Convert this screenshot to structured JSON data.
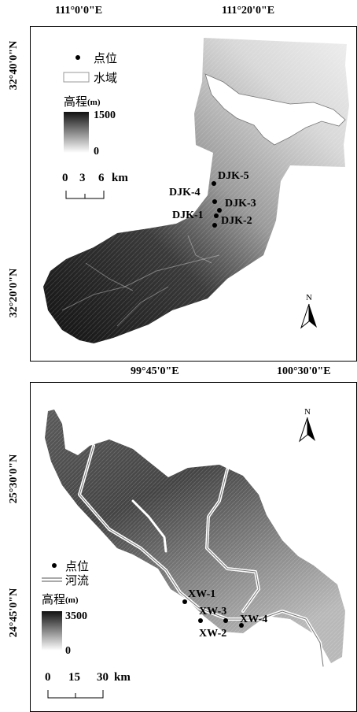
{
  "top_map": {
    "lon_labels": [
      "111°0'0\"E",
      "111°20'0\"E"
    ],
    "lat_labels": [
      "32°40'0\"N",
      "32°20'0\"N"
    ],
    "legend": {
      "point_label": "点位",
      "water_label": "水域",
      "elevation_title": "高程",
      "elevation_unit": "(m)",
      "elevation_max": "1500",
      "elevation_min": "0",
      "scale_ticks": [
        "0",
        "3",
        "6"
      ],
      "scale_unit": "km"
    },
    "north_label": "N",
    "points": [
      {
        "name": "DJK-5"
      },
      {
        "name": "DJK-4"
      },
      {
        "name": "DJK-3"
      },
      {
        "name": "DJK-1"
      },
      {
        "name": "DJK-2"
      }
    ]
  },
  "bottom_map": {
    "lon_labels": [
      "99°45'0\"E",
      "100°30'0\"E"
    ],
    "lat_labels": [
      "25°30'0\"N",
      "24°45'0\"N"
    ],
    "legend": {
      "point_label": "点位",
      "river_label": "河流",
      "elevation_title": "高程",
      "elevation_unit": "(m)",
      "elevation_max": "3500",
      "elevation_min": "0",
      "scale_ticks": [
        "0",
        "15",
        "30"
      ],
      "scale_unit": "km"
    },
    "north_label": "N",
    "points": [
      {
        "name": "XW-1"
      },
      {
        "name": "XW-3"
      },
      {
        "name": "XW-4"
      },
      {
        "name": "XW-2"
      }
    ]
  },
  "colors": {
    "dark_terrain": "#1a1a1a",
    "light_terrain": "#e6e6e6",
    "river": "#ffffff"
  }
}
